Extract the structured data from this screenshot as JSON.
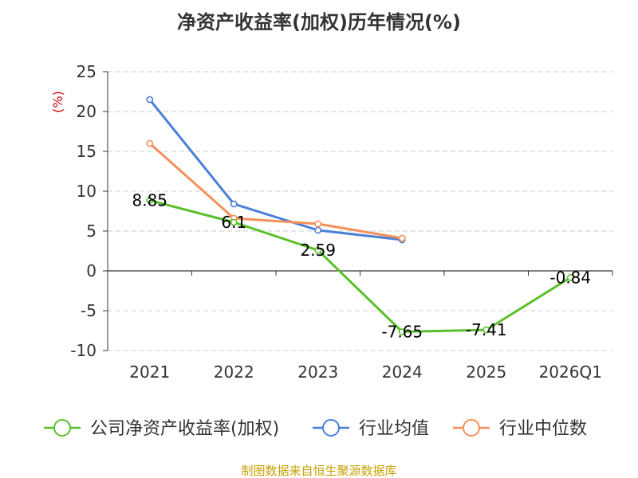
{
  "chart_data": {
    "type": "line",
    "title": "净资产收益率(加权)历年情况(%)",
    "ylabel": "(%)",
    "xlabel": "",
    "categories": [
      "2021",
      "2022",
      "2023",
      "2024",
      "2025",
      "2026Q1"
    ],
    "ylim": [
      -10,
      25
    ],
    "yticks": [
      25,
      20,
      15,
      10,
      5,
      0,
      -5,
      -10
    ],
    "grid": true,
    "legend_position": "bottom",
    "series": [
      {
        "name": "公司净资产收益率(加权)",
        "color": "#5ac02a",
        "values": [
          8.85,
          6.1,
          2.59,
          -7.65,
          -7.41,
          -0.84
        ],
        "labels": [
          "8.85",
          "6.1",
          "2.59",
          "-7.65",
          "-7.41",
          "-0.84"
        ]
      },
      {
        "name": "行业均值",
        "color": "#4a7fd8",
        "values": [
          21.5,
          8.4,
          5.1,
          3.9,
          null,
          null
        ]
      },
      {
        "name": "行业中位数",
        "color": "#f5905a",
        "values": [
          16.0,
          6.6,
          5.9,
          4.1,
          null,
          null
        ]
      }
    ]
  },
  "source": "制图数据来自恒生聚源数据库"
}
